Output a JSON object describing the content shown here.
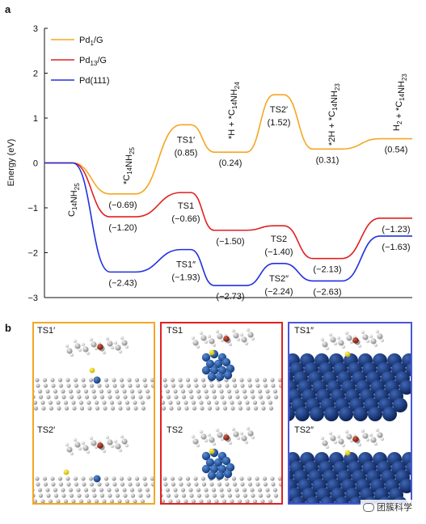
{
  "chart_data": {
    "type": "line",
    "panel_label": "a",
    "ylabel": "Energy (eV)",
    "ylim": [
      -3,
      3
    ],
    "yticks": [
      3,
      2,
      1,
      0,
      -1,
      -2,
      -3
    ],
    "grid": false,
    "legend_position": "top-left",
    "series": [
      {
        "name": "Pd1/G",
        "color": "#f5a623",
        "points": [
          {
            "stage": "C14NH25",
            "value": 0
          },
          {
            "stage": "*C14NH25",
            "value": -0.69
          },
          {
            "stage": "TS1′",
            "value": 0.85
          },
          {
            "stage": "*H + *C14NH24",
            "value": 0.24
          },
          {
            "stage": "TS2′",
            "value": 1.52
          },
          {
            "stage": "*2H + *C14NH23",
            "value": 0.31
          },
          {
            "stage": "H2 + *C14NH23",
            "value": 0.54
          }
        ],
        "labels": [
          {
            "stage": "*C14NH25",
            "text": "(−0.69)"
          },
          {
            "stage": "TS1′",
            "text": "TS1′"
          },
          {
            "stage": "TS1′",
            "text": "(0.85)"
          },
          {
            "stage": "*H + *C14NH24",
            "text": "(0.24)"
          },
          {
            "stage": "TS2′",
            "text": "TS2′"
          },
          {
            "stage": "TS2′",
            "text": "(1.52)"
          },
          {
            "stage": "*2H + *C14NH23",
            "text": "(0.31)"
          },
          {
            "stage": "H2 + *C14NH23",
            "text": "(0.54)"
          }
        ]
      },
      {
        "name": "Pd13/G",
        "color": "#e02020",
        "points": [
          {
            "stage": "C14NH25",
            "value": 0
          },
          {
            "stage": "*C14NH25",
            "value": -1.2
          },
          {
            "stage": "TS1",
            "value": -0.66
          },
          {
            "stage": "*H + *C14NH24",
            "value": -1.5
          },
          {
            "stage": "TS2",
            "value": -1.4
          },
          {
            "stage": "*2H + *C14NH23",
            "value": -2.13
          },
          {
            "stage": "H2 + *C14NH23",
            "value": -1.23
          }
        ],
        "labels": [
          {
            "stage": "*C14NH25",
            "text": "(−1.20)"
          },
          {
            "stage": "TS1",
            "text": "TS1"
          },
          {
            "stage": "TS1",
            "text": "(−0.66)"
          },
          {
            "stage": "*H + *C14NH24",
            "text": "(−1.50)"
          },
          {
            "stage": "TS2",
            "text": "TS2"
          },
          {
            "stage": "TS2",
            "text": "(−1.40)"
          },
          {
            "stage": "*2H + *C14NH23",
            "text": "(−2.13)"
          },
          {
            "stage": "H2 + *C14NH23",
            "text": "(−1.23)"
          }
        ]
      },
      {
        "name": "Pd(111)",
        "color": "#2030e0",
        "points": [
          {
            "stage": "C14NH25",
            "value": 0
          },
          {
            "stage": "*C14NH25",
            "value": -2.43
          },
          {
            "stage": "TS1″",
            "value": -1.93
          },
          {
            "stage": "*H + *C14NH24",
            "value": -2.73
          },
          {
            "stage": "TS2″",
            "value": -2.24
          },
          {
            "stage": "*2H + *C14NH23",
            "value": -2.63
          },
          {
            "stage": "H2 + *C14NH23",
            "value": -1.63
          }
        ],
        "labels": [
          {
            "stage": "*C14NH25",
            "text": "(−2.43)"
          },
          {
            "stage": "TS1″",
            "text": "TS1″"
          },
          {
            "stage": "TS1″",
            "text": "(−1.93)"
          },
          {
            "stage": "*H + *C14NH24",
            "text": "(−2.73)"
          },
          {
            "stage": "TS2″",
            "text": "TS2″"
          },
          {
            "stage": "TS2″",
            "text": "(−2.24)"
          },
          {
            "stage": "*2H + *C14NH23",
            "text": "(−2.63)"
          },
          {
            "stage": "H2 + *C14NH23",
            "text": "(−1.63)"
          }
        ]
      }
    ],
    "stage_labels": [
      "C14NH25",
      "*C14NH25",
      "*H + *C14NH24",
      "*2H + *C14NH23",
      "H2 + *C14NH23"
    ]
  },
  "panel_b": {
    "label": "b",
    "columns": [
      {
        "color": "#f5a623",
        "top_label": "TS1′",
        "bottom_label": "TS2′",
        "substrate": "graphene",
        "cluster": "single"
      },
      {
        "color": "#e02020",
        "top_label": "TS1",
        "bottom_label": "TS2",
        "substrate": "graphene",
        "cluster": "pd13"
      },
      {
        "color": "#4a56d8",
        "top_label": "TS1″",
        "bottom_label": "TS2″",
        "substrate": "pd111",
        "cluster": "none"
      }
    ]
  },
  "watermark": {
    "text": "团簇科学",
    "icon": "wechat-icon"
  }
}
